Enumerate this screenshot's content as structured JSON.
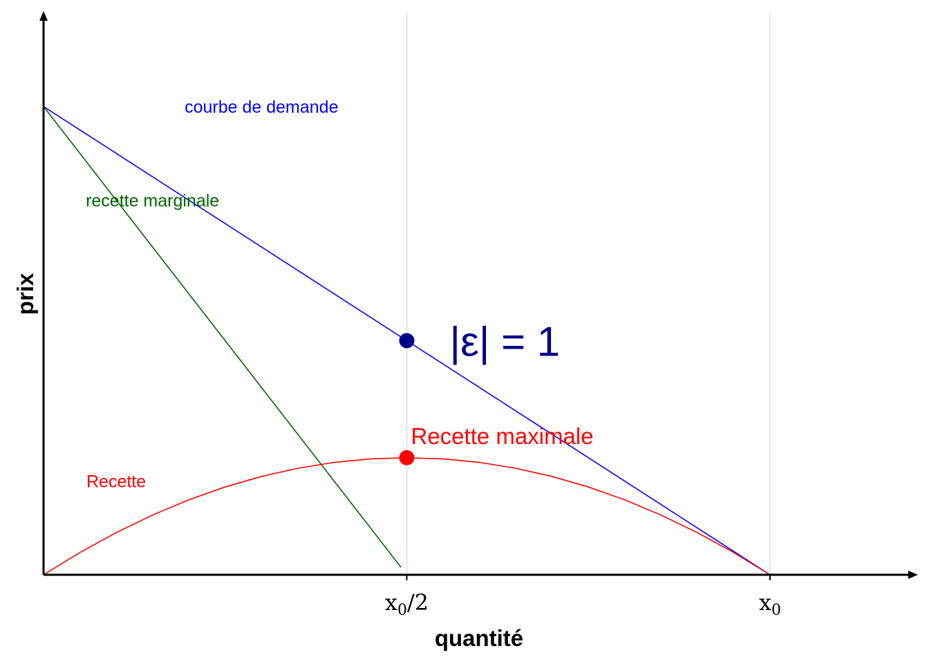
{
  "chart_data": {
    "type": "line",
    "title": "",
    "xlabel": "quantité",
    "ylabel": "prix",
    "xlim": [
      0,
      1.2
    ],
    "ylim": [
      0,
      1.2
    ],
    "x_ticks": [
      {
        "value": 0.5,
        "label_main": "x",
        "label_sub": "0",
        "label_suffix": "/2"
      },
      {
        "value": 1.0,
        "label_main": "x",
        "label_sub": "0",
        "label_suffix": ""
      }
    ],
    "grid": {
      "vertical": [
        0.5,
        1.0
      ],
      "horizontal": false
    },
    "series": [
      {
        "key": "demand",
        "name": "courbe de demande",
        "color": "#0000ff",
        "label_pos": [
          0.3,
          1.0
        ],
        "x": [
          0,
          1
        ],
        "y": [
          1,
          0
        ]
      },
      {
        "key": "marginal",
        "name": "recette marginale",
        "color": "#006400",
        "label_pos": [
          0.15,
          0.8
        ],
        "x": [
          0,
          0.492
        ],
        "y": [
          1,
          0.016
        ]
      },
      {
        "key": "revenue",
        "name": "Recette",
        "color": "#ff0000",
        "label_pos": [
          0.1,
          0.2
        ],
        "x": [
          0,
          0.05,
          0.1,
          0.15,
          0.2,
          0.25,
          0.3,
          0.35,
          0.4,
          0.45,
          0.5,
          0.55,
          0.6,
          0.65,
          0.7,
          0.75,
          0.8,
          0.85,
          0.9,
          0.95,
          1.0
        ],
        "y": [
          0,
          0.0475,
          0.09,
          0.1275,
          0.16,
          0.1875,
          0.21,
          0.2275,
          0.24,
          0.2475,
          0.25,
          0.2475,
          0.24,
          0.2275,
          0.21,
          0.1875,
          0.16,
          0.1275,
          0.09,
          0.0475,
          0
        ]
      }
    ],
    "points": [
      {
        "key": "elasticity",
        "x": 0.5,
        "y": 0.5,
        "color": "#00008b",
        "label": "|ε| = 1"
      },
      {
        "key": "max_revenue",
        "x": 0.5,
        "y": 0.25,
        "color": "#ff0000",
        "label": "Recette maximale"
      }
    ]
  }
}
